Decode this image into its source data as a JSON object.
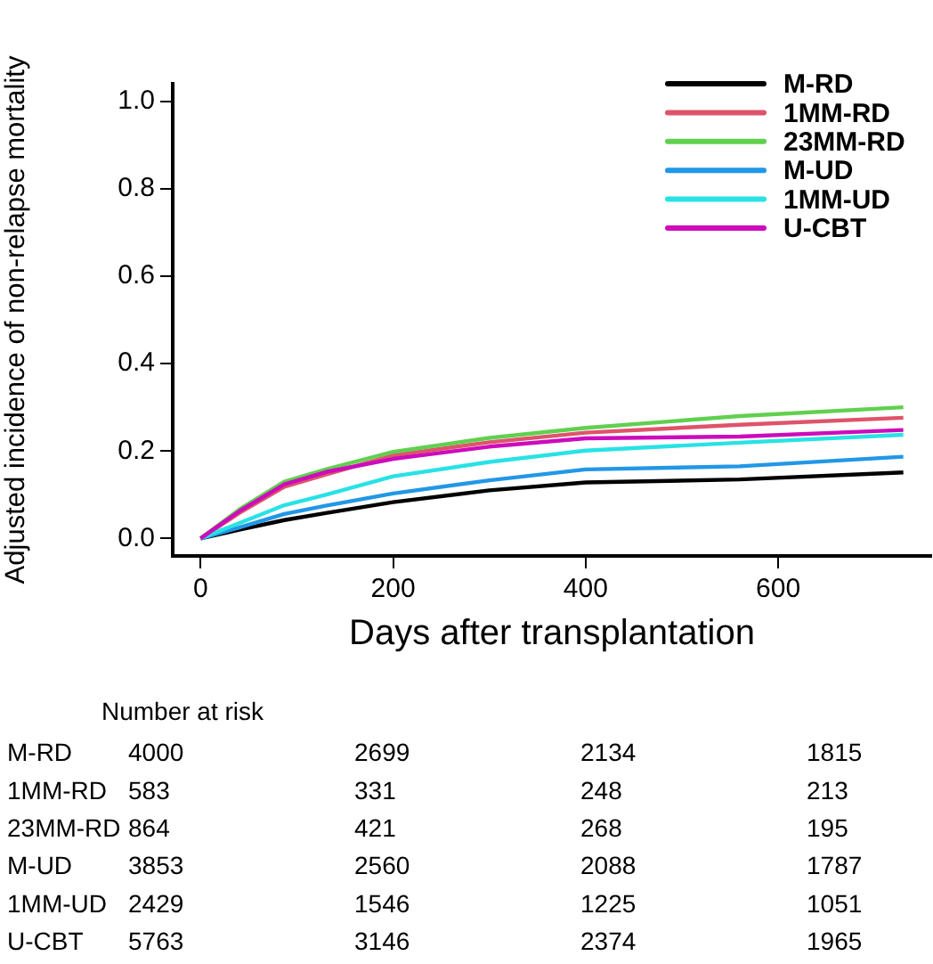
{
  "chart_data": {
    "type": "line",
    "xlabel": "Days after transplantation",
    "ylabel": "Adjusted incidence of non-relapse mortality",
    "x": [
      0,
      40,
      87,
      130,
      200,
      300,
      400,
      560,
      730
    ],
    "series": [
      {
        "name": "M-RD",
        "color": "#000000",
        "values": [
          0,
          0.02,
          0.042,
          0.058,
          0.083,
          0.11,
          0.128,
          0.135,
          0.151
        ]
      },
      {
        "name": "1MM-RD",
        "color": "#df536b",
        "values": [
          0,
          0.058,
          0.118,
          0.146,
          0.19,
          0.22,
          0.242,
          0.26,
          0.276
        ]
      },
      {
        "name": "23MM-RD",
        "color": "#61d04f",
        "values": [
          0,
          0.066,
          0.13,
          0.158,
          0.198,
          0.23,
          0.253,
          0.28,
          0.3
        ]
      },
      {
        "name": "M-UD",
        "color": "#2297e6",
        "values": [
          0,
          0.025,
          0.056,
          0.075,
          0.103,
          0.133,
          0.158,
          0.165,
          0.187
        ]
      },
      {
        "name": "1MM-UD",
        "color": "#28e2e5",
        "values": [
          0,
          0.035,
          0.076,
          0.1,
          0.142,
          0.175,
          0.201,
          0.219,
          0.237
        ]
      },
      {
        "name": "U-CBT",
        "color": "#cd0bbc",
        "values": [
          0,
          0.062,
          0.124,
          0.152,
          0.182,
          0.21,
          0.229,
          0.233,
          0.248
        ]
      }
    ],
    "xlim": [
      -29,
      759
    ],
    "ylim": [
      -0.04,
      1.04
    ],
    "xticks": [
      0,
      200,
      400,
      600
    ],
    "yticks": [
      {
        "value": 0,
        "label": "0.0"
      },
      {
        "value": 0.2,
        "label": "0.2"
      },
      {
        "value": 0.4,
        "label": "0.4"
      },
      {
        "value": 0.6,
        "label": "0.6"
      },
      {
        "value": 0.8,
        "label": "0.8"
      },
      {
        "value": 1,
        "label": "1.0"
      }
    ],
    "grid": false,
    "legend": "top right",
    "marker": "none",
    "line_style": "solid",
    "annotations": [
      "Number at risk",
      "M-RD 4000 2699 2134 1815",
      "1MM-RD 583 331 248 213",
      "23MM-RD 864 421 268 195",
      "M-UD 3853 2560 2088 1787",
      "1MM-UD 2429 1546 1225 1051",
      "U-CBT 5763 3146 2374 1965"
    ]
  }
}
